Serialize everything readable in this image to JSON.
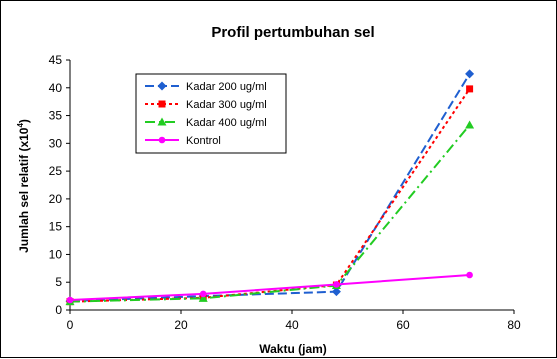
{
  "chart_data": {
    "type": "line",
    "title": "Profil pertumbuhan sel",
    "xlabel": "Waktu (jam)",
    "ylabel_main": "Jumlah sel relatif (x10",
    "ylabel_sup": "4",
    "ylabel_end": ")",
    "xlim": [
      0,
      80
    ],
    "ylim": [
      0,
      45
    ],
    "xticks": [
      "0",
      "20",
      "40",
      "60",
      "80"
    ],
    "yticks": [
      "0",
      "5",
      "10",
      "15",
      "20",
      "25",
      "30",
      "35",
      "40",
      "45"
    ],
    "grid": false,
    "legend_position": "top-left",
    "x": [
      0,
      24,
      48,
      72
    ],
    "series": [
      {
        "name": "Kadar 200 ug/ml",
        "color": "#1f5fd0",
        "marker": "diamond",
        "dash": "long-dash",
        "values": [
          1.6,
          2.5,
          3.3,
          42.5
        ]
      },
      {
        "name": "Kadar 300 ug/ml",
        "color": "#ff0000",
        "marker": "square",
        "dash": "dotted",
        "values": [
          1.5,
          2.2,
          4.5,
          39.8
        ]
      },
      {
        "name": "Kadar 400 ug/ml",
        "color": "#22cc22",
        "marker": "triangle",
        "dash": "dash-dot",
        "values": [
          1.5,
          2.1,
          4.4,
          33.3
        ]
      },
      {
        "name": "Kontrol",
        "color": "#ff00ff",
        "marker": "circle",
        "dash": "solid",
        "values": [
          1.8,
          2.9,
          4.6,
          6.3
        ]
      }
    ]
  }
}
